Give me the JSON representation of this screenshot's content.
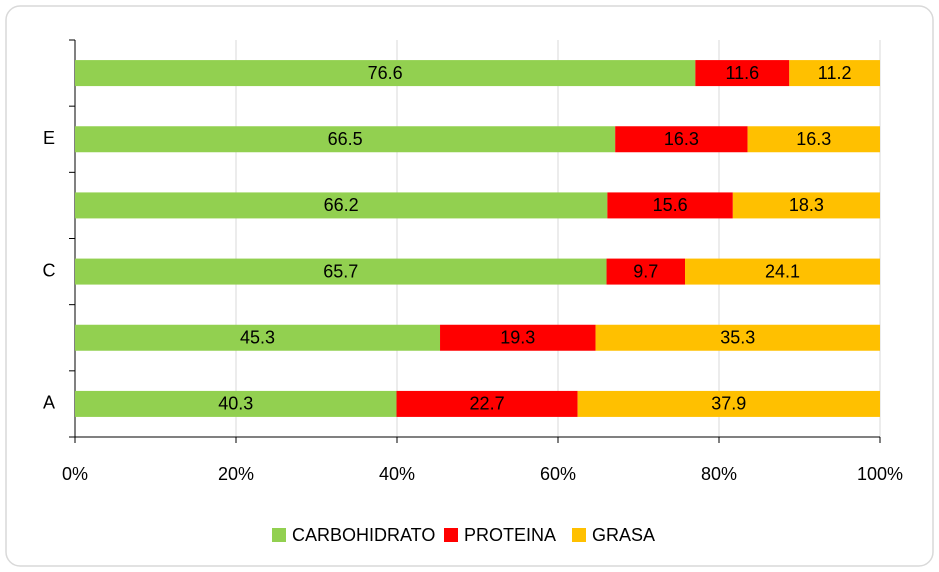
{
  "chart_data": {
    "type": "bar",
    "orientation": "horizontal",
    "stacked": "percent",
    "categories": [
      "A",
      null,
      "C",
      null,
      "E",
      null
    ],
    "series": [
      {
        "name": "CARBOHIDRATO",
        "color": "#92d050",
        "values": [
          40.3,
          45.3,
          65.7,
          66.2,
          66.5,
          76.6
        ]
      },
      {
        "name": "PROTEINA",
        "color": "#ff0000",
        "values": [
          22.7,
          19.3,
          9.7,
          15.6,
          16.3,
          11.6
        ]
      },
      {
        "name": "GRASA",
        "color": "#ffc000",
        "values": [
          37.9,
          35.3,
          24.1,
          18.3,
          16.3,
          11.2
        ]
      }
    ],
    "xlim": [
      0,
      100
    ],
    "xticks": [
      {
        "value": 0,
        "label": "0%"
      },
      {
        "value": 20,
        "label": "20%"
      },
      {
        "value": 40,
        "label": "40%"
      },
      {
        "value": 60,
        "label": "60%"
      },
      {
        "value": 80,
        "label": "80%"
      },
      {
        "value": 100,
        "label": "100%"
      }
    ],
    "grid": true,
    "legend": "bottom"
  }
}
